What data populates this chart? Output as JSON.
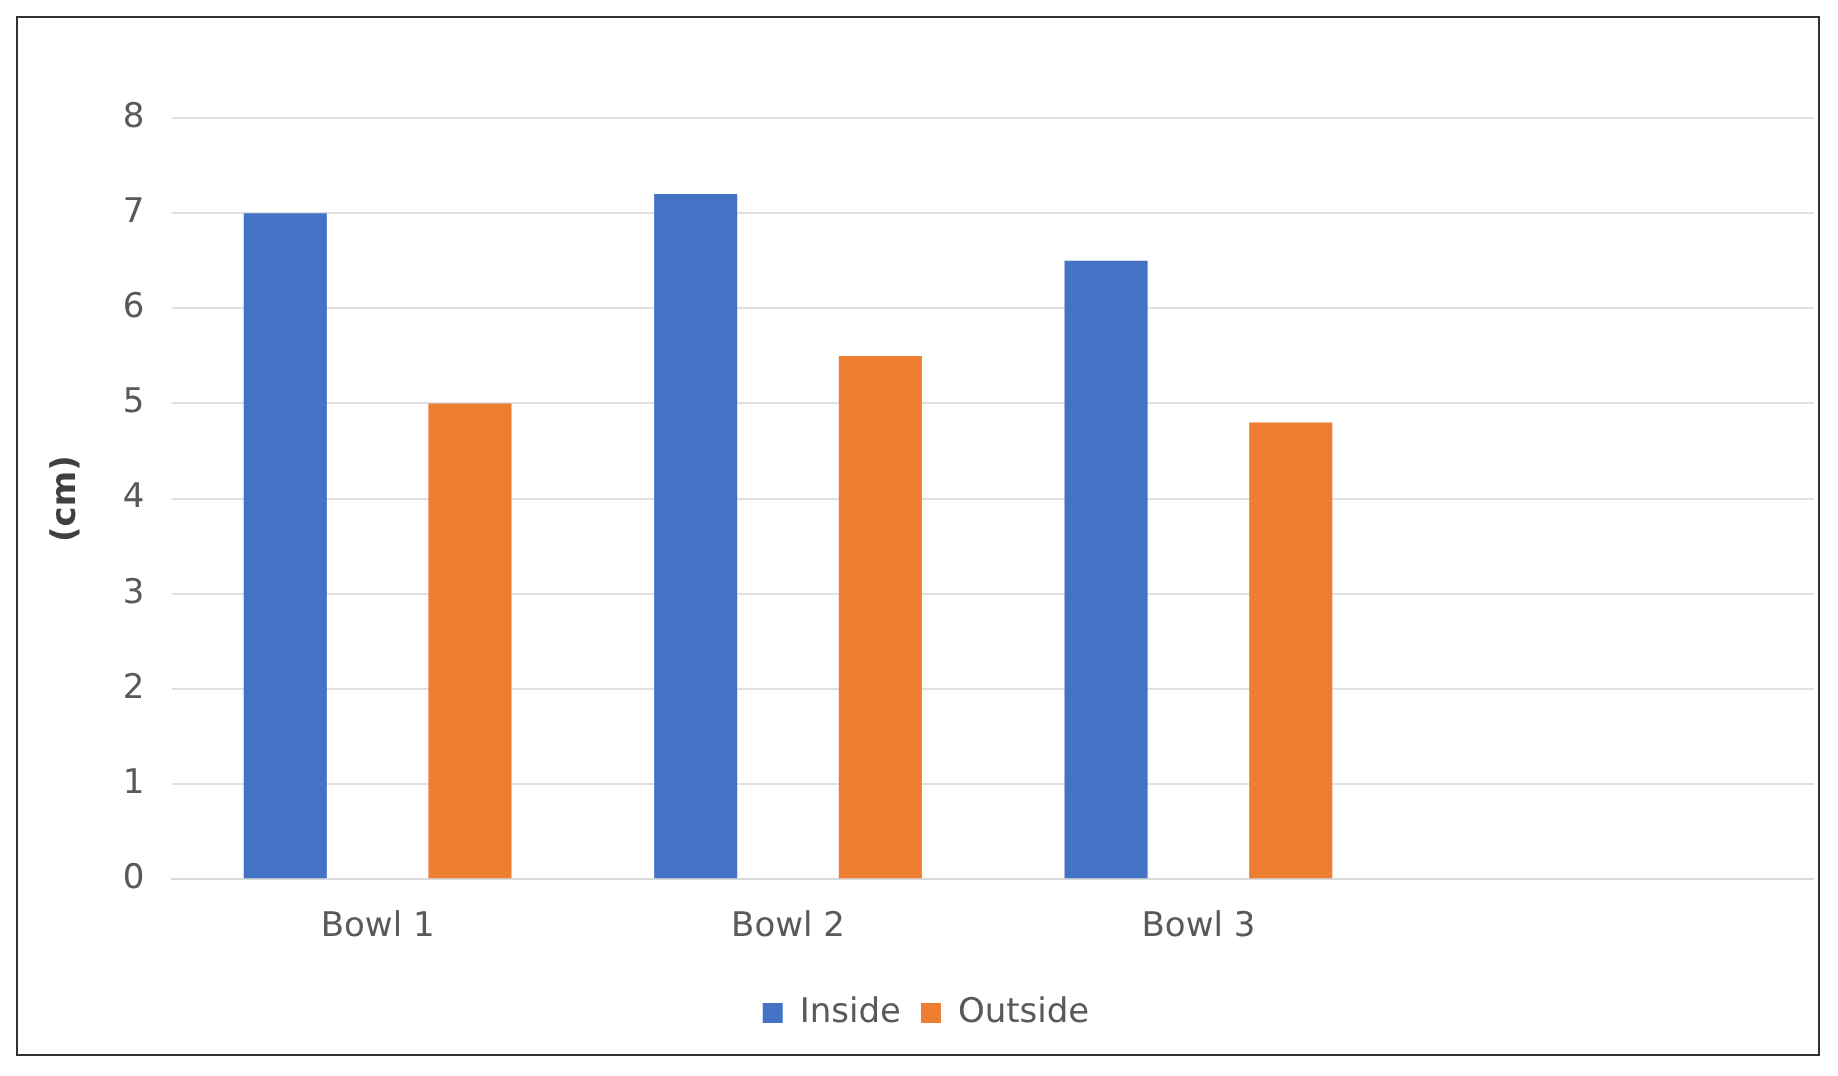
{
  "chart_data": {
    "type": "bar",
    "ylabel": "(cm)",
    "categories": [
      "Bowl 1",
      "Bowl 2",
      "Bowl 3",
      null
    ],
    "series": [
      {
        "name": "Inside",
        "color": "#4472c4",
        "values": [
          7.0,
          7.2,
          6.5,
          null
        ]
      },
      {
        "name": "Outside",
        "color": "#ed7d31",
        "values": [
          5.0,
          5.5,
          4.8,
          null
        ]
      }
    ],
    "ylim": [
      0,
      8
    ],
    "yticks": [
      0,
      1,
      2,
      3,
      4,
      5,
      6,
      7,
      8
    ],
    "grid": "y",
    "legend": "bottom"
  }
}
